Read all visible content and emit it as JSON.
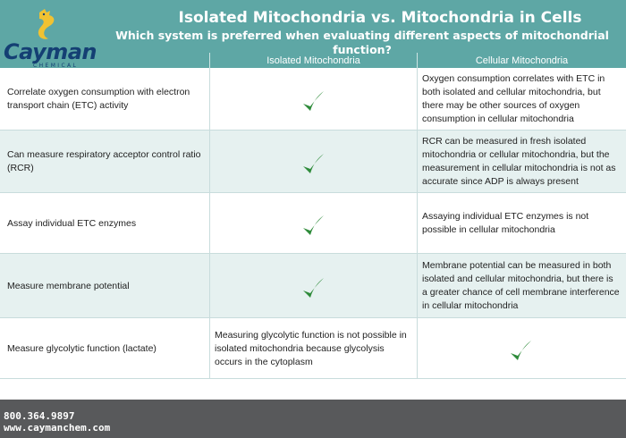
{
  "header": {
    "logo_text": "Cayman",
    "logo_subtext": "CHEMICAL",
    "title": "Isolated Mitochondria vs. Mitochondria in Cells",
    "subtitle": "Which system is preferred when evaluating different aspects of mitochondrial function?"
  },
  "columns": {
    "isolated": "Isolated Mitochondria",
    "cellular": "Cellular Mitochondria"
  },
  "rows": [
    {
      "aspect": "Correlate oxygen consumption with electron transport chain (ETC) activity",
      "isolated": "",
      "isolated_check": true,
      "cellular": "Oxygen consumption correlates with ETC in both isolated and cellular mitochondria, but there may be other sources of oxygen consumption in cellular mitochondria",
      "cellular_check": false
    },
    {
      "aspect": "Can measure respiratory acceptor control ratio (RCR)",
      "isolated": "",
      "isolated_check": true,
      "cellular": "RCR can be measured in fresh isolated mitochondria or cellular mitochondria, but the measurement in cellular mitochondria is not as accurate since ADP is always present",
      "cellular_check": false
    },
    {
      "aspect": "Assay individual ETC enzymes",
      "isolated": "",
      "isolated_check": true,
      "cellular": "Assaying individual ETC enzymes is not possible in cellular mitochondria",
      "cellular_check": false
    },
    {
      "aspect": "Measure membrane potential",
      "isolated": "",
      "isolated_check": true,
      "cellular": "Membrane potential can be measured in both isolated and cellular mitochondria, but there is a greater chance of cell membrane interference in cellular mitochondria",
      "cellular_check": false
    },
    {
      "aspect": "Measure glycolytic function (lactate)",
      "isolated": "Measuring glycolytic function is not possible in isolated mitochondria because glycolysis occurs in the cytoplasm",
      "isolated_check": false,
      "cellular": "",
      "cellular_check": true
    }
  ],
  "footer": {
    "phone": "800.364.9897",
    "website": "www.caymanchem.com"
  },
  "colors": {
    "header_teal": "#5ea7a5",
    "row_alt": "#e6f1f0",
    "check_green": "#2e8b3a",
    "logo_navy": "#143f73",
    "footer_gray": "#58595b"
  }
}
